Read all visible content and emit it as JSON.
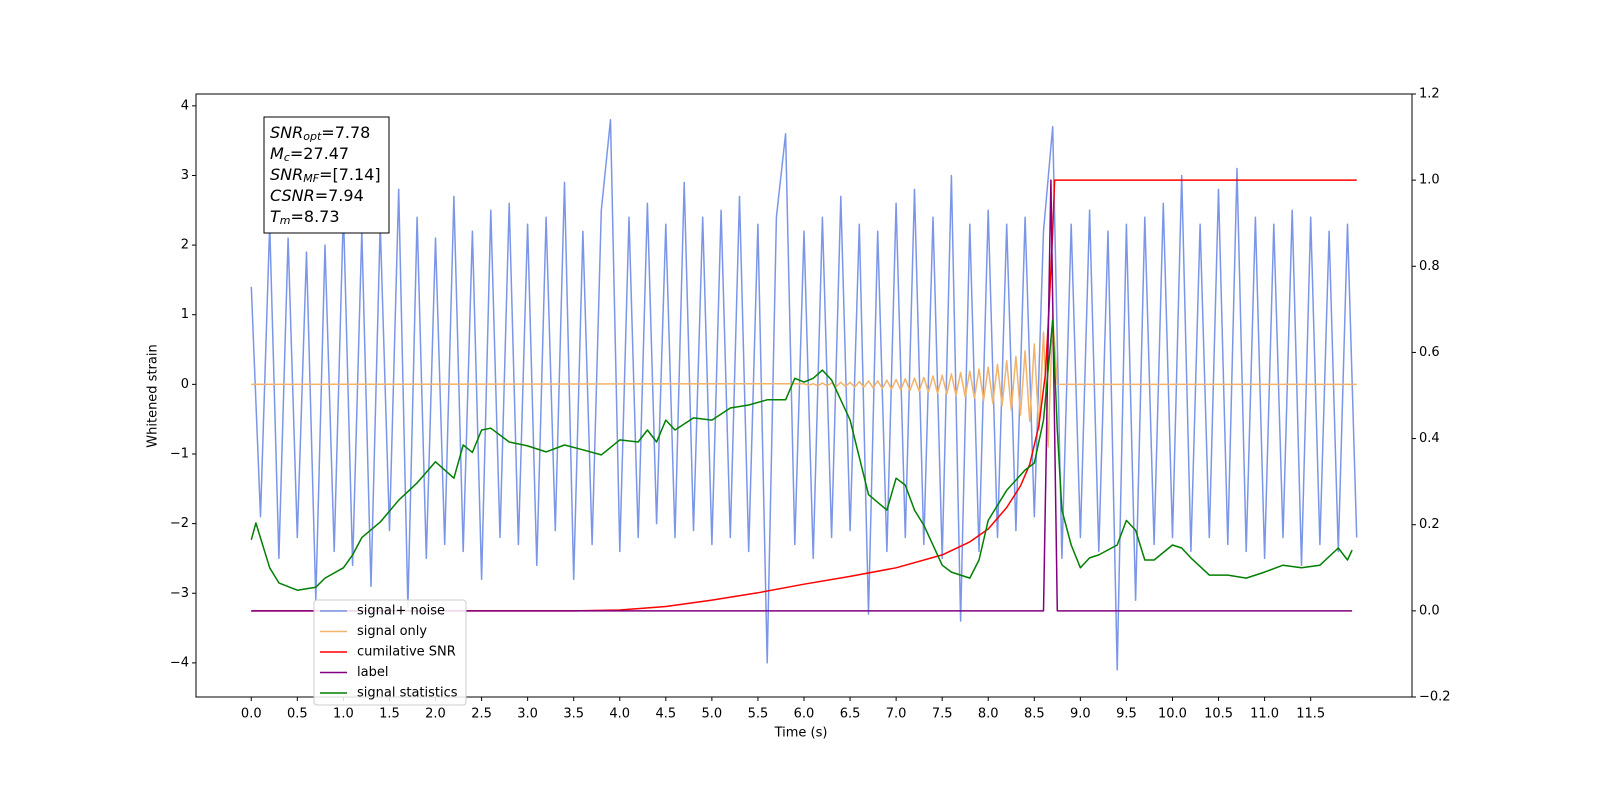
{
  "chart_data": {
    "type": "line",
    "xlabel": "Time (s)",
    "ylabel": "Whitened strain",
    "xlim": [
      -0.6,
      12.6
    ],
    "ylim": [
      -4.49,
      4.17
    ],
    "y2lim": [
      -0.2,
      1.2
    ],
    "xticks": [
      {
        "value": 0,
        "label": "0.0"
      },
      0.5,
      {
        "value": 1,
        "label": "1.0"
      },
      1.5,
      {
        "value": 2,
        "label": "2.0"
      },
      2.5,
      {
        "value": 3,
        "label": "3.0"
      },
      3.5,
      {
        "value": 4,
        "label": "4.0"
      },
      4.5,
      {
        "value": 5,
        "label": "5.0"
      },
      5.5,
      {
        "value": 6,
        "label": "6.0"
      },
      6.5,
      {
        "value": 7,
        "label": "7.0"
      },
      7.5,
      {
        "value": 8,
        "label": "8.0"
      },
      8.5,
      {
        "value": 9,
        "label": "9.0"
      },
      9.5,
      {
        "value": 10,
        "label": "10.0"
      },
      10.5,
      {
        "value": 11,
        "label": "11.0"
      },
      11.5
    ],
    "yticks": [
      {
        "value": -4,
        "label": "−4"
      },
      {
        "value": -3,
        "label": "−3"
      },
      {
        "value": -2,
        "label": "−2"
      },
      {
        "value": -1,
        "label": "−1"
      },
      0,
      1,
      2,
      3,
      4
    ],
    "y2ticks": [
      {
        "value": -0.2,
        "label": "−0.2"
      },
      {
        "value": 0,
        "label": "0.0"
      },
      0.2,
      0.4,
      0.6,
      0.8,
      {
        "value": 1,
        "label": "1.0"
      },
      1.2
    ],
    "annotations": [
      {
        "symbol": "SNR",
        "subscript": "opt",
        "text": "=7.78"
      },
      {
        "symbol": "M",
        "subscript": "c",
        "text": "=27.47"
      },
      {
        "symbol": "SNR",
        "subscript": "MF",
        "text": "=[7.14]"
      },
      {
        "symbol": "CSNR",
        "text": "=7.94"
      },
      {
        "symbol": "T",
        "subscript": "m",
        "text": "=8.73"
      }
    ],
    "series": [
      {
        "name": "signal+ noise",
        "color": "#7b96e8",
        "x": [
          0.0,
          0.1,
          0.2,
          0.3,
          0.4,
          0.5,
          0.6,
          0.7,
          0.8,
          0.9,
          1.0,
          1.1,
          1.2,
          1.3,
          1.4,
          1.5,
          1.6,
          1.7,
          1.8,
          1.9,
          2.0,
          2.1,
          2.2,
          2.3,
          2.4,
          2.5,
          2.6,
          2.7,
          2.8,
          2.9,
          3.0,
          3.1,
          3.2,
          3.3,
          3.4,
          3.5,
          3.6,
          3.7,
          3.8,
          3.9,
          4.0,
          4.1,
          4.2,
          4.3,
          4.4,
          4.5,
          4.6,
          4.7,
          4.8,
          4.9,
          5.0,
          5.1,
          5.2,
          5.3,
          5.4,
          5.5,
          5.6,
          5.7,
          5.8,
          5.9,
          6.0,
          6.1,
          6.2,
          6.3,
          6.4,
          6.5,
          6.6,
          6.7,
          6.8,
          6.9,
          7.0,
          7.1,
          7.2,
          7.3,
          7.4,
          7.5,
          7.6,
          7.7,
          7.8,
          7.9,
          8.0,
          8.1,
          8.2,
          8.3,
          8.4,
          8.5,
          8.6,
          8.7,
          8.8,
          8.9,
          9.0,
          9.1,
          9.2,
          9.3,
          9.4,
          9.5,
          9.6,
          9.7,
          9.8,
          9.9,
          10.0,
          10.1,
          10.2,
          10.3,
          10.4,
          10.5,
          10.6,
          10.7,
          10.8,
          10.9,
          11.0,
          11.1,
          11.2,
          11.3,
          11.4,
          11.5,
          11.6,
          11.7,
          11.8,
          11.9,
          12.0
        ],
        "values": [
          1.4,
          -1.9,
          2.3,
          -2.5,
          2.1,
          -2.2,
          1.9,
          -3.1,
          2.0,
          -2.4,
          2.5,
          -2.6,
          2.2,
          -2.9,
          2.3,
          -2.1,
          2.8,
          -3.2,
          2.4,
          -2.5,
          2.1,
          -2.3,
          2.7,
          -2.4,
          2.2,
          -2.8,
          2.5,
          -2.2,
          2.6,
          -2.3,
          2.3,
          -2.6,
          2.4,
          -2.1,
          2.9,
          -2.8,
          2.2,
          -2.3,
          2.5,
          3.8,
          -2.4,
          2.4,
          -2.2,
          2.6,
          -2.0,
          2.3,
          -2.2,
          2.9,
          -2.1,
          2.4,
          -2.3,
          2.5,
          -2.2,
          2.7,
          -2.4,
          2.3,
          -4.0,
          2.4,
          3.6,
          -2.3,
          2.2,
          -2.5,
          2.4,
          -2.2,
          2.7,
          -2.1,
          2.3,
          -3.3,
          2.2,
          -2.4,
          2.6,
          -2.2,
          2.8,
          -2.3,
          2.4,
          -2.5,
          3.0,
          -3.4,
          2.3,
          -2.4,
          2.5,
          -2.2,
          2.3,
          -2.1,
          2.4,
          -1.9,
          2.2,
          3.7,
          -2.5,
          2.3,
          -2.2,
          2.5,
          -2.4,
          2.2,
          -4.1,
          2.3,
          -3.1,
          2.4,
          -2.3,
          2.6,
          -2.2,
          3.0,
          -2.4,
          2.3,
          -2.2,
          2.8,
          -2.3,
          3.1,
          -2.4,
          2.4,
          -2.5,
          2.3,
          -2.2,
          2.5,
          -2.6,
          2.4,
          -2.3,
          2.2,
          -2.4,
          2.3,
          -2.2
        ]
      },
      {
        "name": "signal only",
        "color": "#f2b36a",
        "x": [
          0.0,
          6.0,
          6.05,
          6.1,
          6.15,
          6.2,
          6.25,
          6.3,
          6.35,
          6.4,
          6.45,
          6.5,
          6.55,
          6.6,
          6.65,
          6.7,
          6.75,
          6.8,
          6.85,
          6.9,
          6.95,
          7.0,
          7.05,
          7.1,
          7.15,
          7.2,
          7.25,
          7.3,
          7.35,
          7.4,
          7.45,
          7.5,
          7.55,
          7.6,
          7.65,
          7.7,
          7.75,
          7.8,
          7.85,
          7.9,
          7.95,
          8.0,
          8.05,
          8.1,
          8.15,
          8.2,
          8.25,
          8.3,
          8.35,
          8.4,
          8.45,
          8.5,
          8.55,
          8.6,
          8.65,
          8.7,
          8.75,
          12.0
        ],
        "values": [
          0,
          0.01,
          -0.01,
          0.01,
          -0.02,
          0.02,
          -0.02,
          0.02,
          -0.03,
          0.03,
          -0.03,
          0.03,
          -0.04,
          0.04,
          -0.04,
          0.05,
          -0.05,
          0.05,
          -0.06,
          0.06,
          -0.07,
          0.07,
          -0.08,
          0.08,
          -0.09,
          0.09,
          -0.1,
          0.1,
          -0.11,
          0.12,
          -0.13,
          0.13,
          -0.14,
          0.15,
          -0.16,
          0.17,
          -0.18,
          0.19,
          -0.2,
          0.22,
          -0.23,
          0.25,
          -0.27,
          0.29,
          -0.31,
          0.34,
          -0.37,
          0.4,
          -0.44,
          0.48,
          -0.53,
          0.58,
          -0.65,
          0.75,
          -0.9,
          1.0,
          0,
          0
        ]
      },
      {
        "name": "cumilative SNR",
        "color": "#ff0000",
        "axis": "y2",
        "x": [
          0.0,
          3.5,
          4.0,
          4.5,
          5.0,
          5.5,
          6.0,
          6.5,
          7.0,
          7.5,
          7.8,
          8.0,
          8.2,
          8.35,
          8.45,
          8.55,
          8.62,
          8.66,
          8.7,
          8.72,
          12.0
        ],
        "values": [
          0,
          0,
          0.002,
          0.01,
          0.025,
          0.042,
          0.062,
          0.08,
          0.1,
          0.13,
          0.16,
          0.19,
          0.24,
          0.29,
          0.34,
          0.43,
          0.55,
          0.7,
          0.88,
          1.0,
          1.0
        ]
      },
      {
        "name": "label",
        "color": "#800080",
        "axis": "y2",
        "x": [
          0.0,
          8.6,
          8.68,
          8.75,
          11.95
        ],
        "values": [
          0,
          0,
          1.0,
          0,
          0
        ]
      },
      {
        "name": "signal statistics",
        "color": "#008000",
        "axis": "y2",
        "x": [
          0.0,
          0.05,
          0.2,
          0.3,
          0.5,
          0.7,
          0.8,
          1.0,
          1.1,
          1.2,
          1.4,
          1.6,
          1.8,
          2.0,
          2.2,
          2.3,
          2.4,
          2.5,
          2.6,
          2.8,
          3.0,
          3.2,
          3.4,
          3.6,
          3.8,
          4.0,
          4.2,
          4.3,
          4.4,
          4.5,
          4.6,
          4.8,
          5.0,
          5.2,
          5.4,
          5.6,
          5.8,
          5.9,
          6.0,
          6.1,
          6.2,
          6.3,
          6.5,
          6.7,
          6.9,
          7.0,
          7.1,
          7.2,
          7.3,
          7.5,
          7.6,
          7.8,
          7.9,
          8.0,
          8.2,
          8.4,
          8.5,
          8.6,
          8.7,
          8.75,
          8.8,
          8.9,
          9.0,
          9.1,
          9.2,
          9.4,
          9.5,
          9.6,
          9.7,
          9.8,
          10.0,
          10.1,
          10.2,
          10.4,
          10.6,
          10.8,
          11.0,
          11.2,
          11.4,
          11.6,
          11.8,
          11.9,
          11.95
        ],
        "values": [
          0.165,
          0.204,
          0.1,
          0.065,
          0.048,
          0.055,
          0.076,
          0.1,
          0.13,
          0.17,
          0.206,
          0.257,
          0.297,
          0.346,
          0.308,
          0.385,
          0.368,
          0.42,
          0.424,
          0.392,
          0.383,
          0.369,
          0.385,
          0.374,
          0.362,
          0.397,
          0.392,
          0.42,
          0.392,
          0.443,
          0.42,
          0.448,
          0.443,
          0.471,
          0.478,
          0.49,
          0.49,
          0.54,
          0.531,
          0.54,
          0.559,
          0.536,
          0.443,
          0.27,
          0.234,
          0.308,
          0.292,
          0.234,
          0.199,
          0.106,
          0.09,
          0.076,
          0.118,
          0.21,
          0.28,
          0.327,
          0.343,
          0.443,
          0.675,
          0.42,
          0.234,
          0.153,
          0.1,
          0.123,
          0.13,
          0.153,
          0.21,
          0.187,
          0.118,
          0.118,
          0.153,
          0.146,
          0.123,
          0.083,
          0.083,
          0.076,
          0.09,
          0.106,
          0.1,
          0.106,
          0.146,
          0.118,
          0.141
        ]
      }
    ]
  }
}
